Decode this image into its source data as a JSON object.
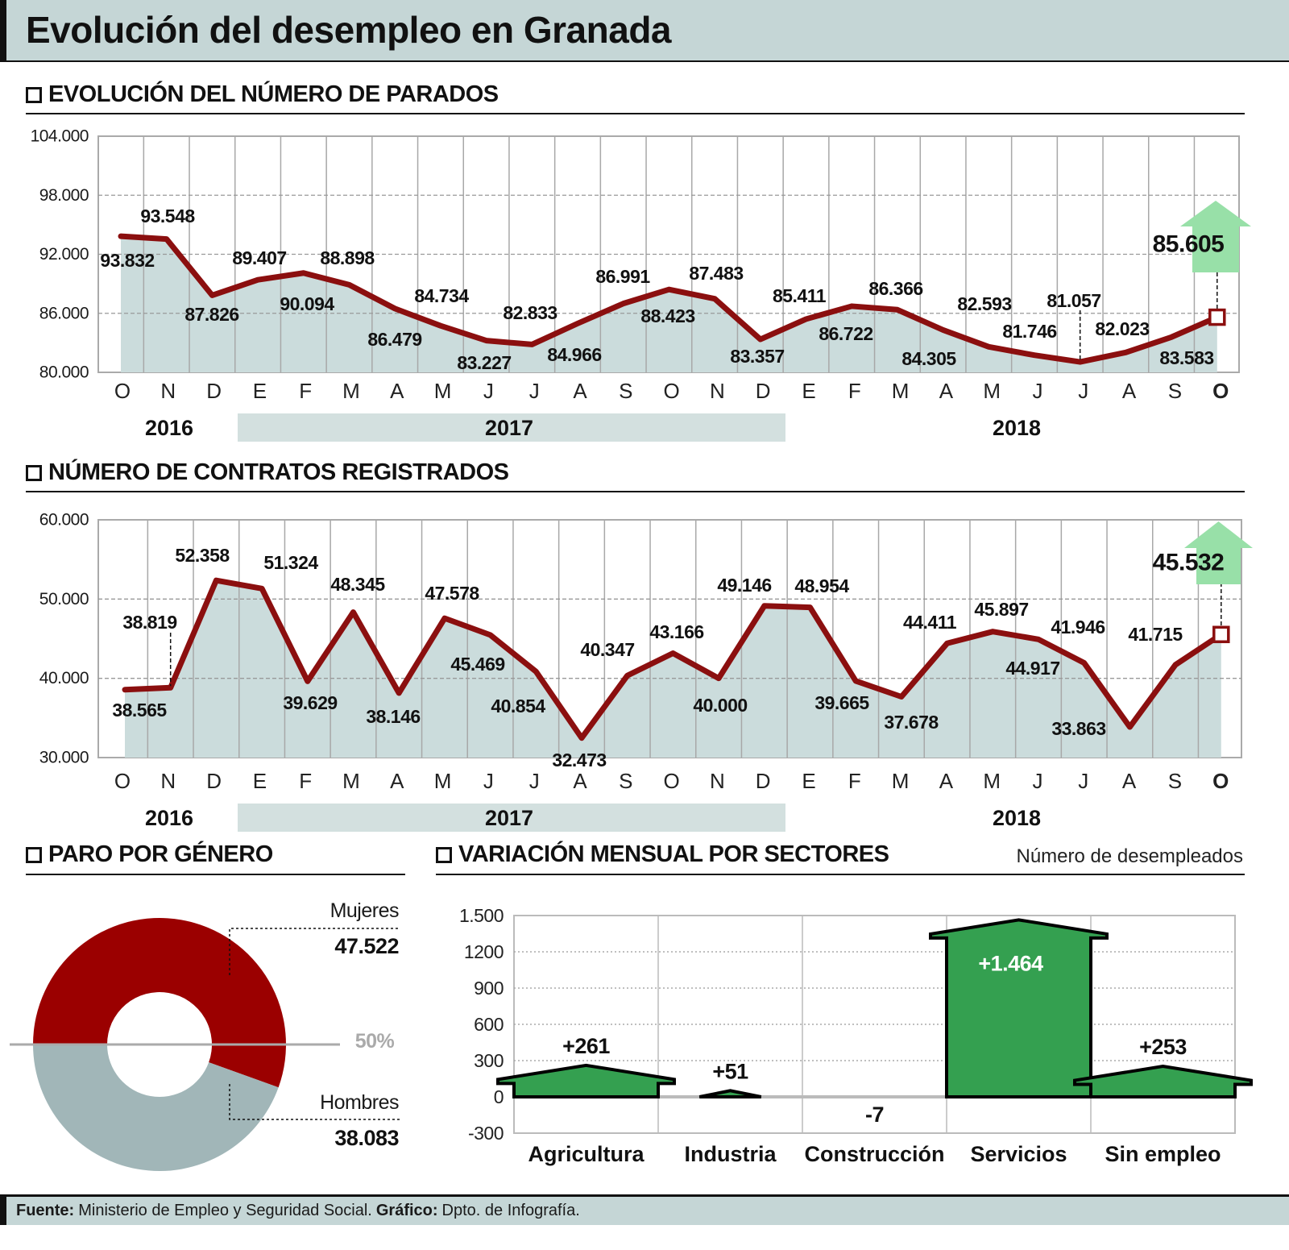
{
  "title": "Evolución del desempleo en Granada",
  "sections": {
    "parados": "EVOLUCIÓN DEL NÚMERO DE PARADOS",
    "contratos": "NÚMERO DE CONTRATOS REGISTRADOS",
    "genero": "PARO POR GÉNERO",
    "sectores": "VARIACIÓN MENSUAL POR SECTORES",
    "sectores_unit": "Número de desempleados"
  },
  "footer": {
    "fuente_label": "Fuente:",
    "fuente": "Ministerio de Empleo y Seguridad Social.",
    "grafico_label": "Gráfico:",
    "grafico": "Dpto. de Infografía."
  },
  "colors": {
    "line": "#8b0f0f",
    "area": "#cbdcdc",
    "arrow_up": "#98e0a8",
    "mujeres": "#9b0000",
    "hombres": "#a1b6b8",
    "bars": "#34a050",
    "band": "#c5d6d6"
  },
  "chart_data": [
    {
      "type": "area",
      "title": "EVOLUCIÓN DEL NÚMERO DE PARADOS",
      "x": [
        "O",
        "N",
        "D",
        "E",
        "F",
        "M",
        "A",
        "M",
        "J",
        "J",
        "A",
        "S",
        "O",
        "N",
        "D",
        "E",
        "F",
        "M",
        "A",
        "M",
        "J",
        "J",
        "A",
        "S",
        "O"
      ],
      "years": [
        {
          "label": "2016",
          "highlight": false
        },
        {
          "label": "2017",
          "highlight": true
        },
        {
          "label": "2018",
          "highlight": false
        }
      ],
      "values": [
        93832,
        93548,
        87826,
        89407,
        90094,
        88898,
        86479,
        84734,
        83227,
        82833,
        84966,
        86991,
        88423,
        87483,
        83357,
        85411,
        86722,
        86366,
        84305,
        82593,
        81746,
        81057,
        82023,
        83583,
        85605
      ],
      "ylim": [
        80000,
        104000
      ],
      "yticks": [
        80000,
        86000,
        92000,
        98000,
        104000
      ],
      "ytick_labels": [
        "80.000",
        "86.000",
        "92.000",
        "98.000",
        "104.000"
      ],
      "grid": true,
      "last_trend": "up"
    },
    {
      "type": "area",
      "title": "NÚMERO DE CONTRATOS REGISTRADOS",
      "x": [
        "O",
        "N",
        "D",
        "E",
        "F",
        "M",
        "A",
        "M",
        "J",
        "J",
        "A",
        "S",
        "O",
        "N",
        "D",
        "E",
        "F",
        "M",
        "A",
        "M",
        "J",
        "J",
        "A",
        "S",
        "O"
      ],
      "years": [
        {
          "label": "2016",
          "highlight": false
        },
        {
          "label": "2017",
          "highlight": true
        },
        {
          "label": "2018",
          "highlight": false
        }
      ],
      "values": [
        38565,
        38819,
        52358,
        51324,
        39629,
        48345,
        38146,
        47578,
        45469,
        40854,
        32473,
        40347,
        43166,
        40000,
        49146,
        48954,
        39665,
        37678,
        44411,
        45897,
        44917,
        41946,
        33863,
        41715,
        45532
      ],
      "ylim": [
        30000,
        60000
      ],
      "yticks": [
        30000,
        40000,
        50000,
        60000
      ],
      "ytick_labels": [
        "30.000",
        "40.000",
        "50.000",
        "60.000"
      ],
      "grid": true,
      "last_trend": "up"
    },
    {
      "type": "pie",
      "title": "PARO POR GÉNERO",
      "donut": true,
      "slices": [
        {
          "name": "Mujeres",
          "value": 47522,
          "label": "47.522"
        },
        {
          "name": "Hombres",
          "value": 38083,
          "label": "38.083"
        }
      ],
      "reference_label": "50%"
    },
    {
      "type": "bar",
      "title": "VARIACIÓN MENSUAL POR SECTORES",
      "ylabel": "Número de desempleados",
      "categories": [
        "Agricultura",
        "Industria",
        "Construcción",
        "Servicios",
        "Sin empleo"
      ],
      "values": [
        261,
        51,
        -7,
        1464,
        253
      ],
      "value_labels": [
        "+261",
        "+51",
        "-7",
        "+1.464",
        "+253"
      ],
      "ylim": [
        -300,
        1500
      ],
      "yticks": [
        -300,
        0,
        300,
        600,
        900,
        1200,
        1500
      ],
      "ytick_labels": [
        "-300",
        "0",
        "300",
        "600",
        "900",
        "1200",
        "1.500"
      ],
      "grid": true
    }
  ]
}
